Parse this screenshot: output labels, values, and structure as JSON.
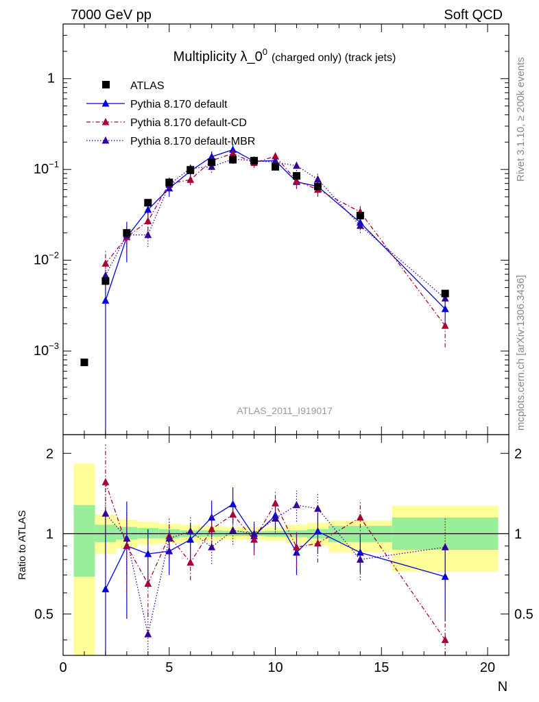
{
  "header": {
    "left": "7000 GeV pp",
    "right": "Soft QCD"
  },
  "side_labels": {
    "rivet": "Rivet 3.1.10, ≥ 200k events",
    "mcplots": "mcplots.cern.ch [arXiv:1306.3436]"
  },
  "chart_data": [
    {
      "type": "scatter",
      "panel": "main",
      "title_main": "Multiplicity λ_0",
      "title_sup": "0",
      "title_suffix": "(charged only) (track jets)",
      "analysis": "ATLAS_2011_I919017",
      "yscale": "log",
      "xlim": [
        0,
        21
      ],
      "ylim": [
        0.00012,
        4
      ],
      "ytick_labels": {
        "1": "1",
        "0.1": "10",
        "0.01": "10",
        "0.001": "10"
      },
      "ytick_exponents": {
        "0.1": "−1",
        "0.01": "−2",
        "0.001": "−3"
      },
      "legend_position": "top-left",
      "series": [
        {
          "name": "ATLAS",
          "color": "#000000",
          "marker": "square",
          "line": "none",
          "x": [
            1,
            2,
            3,
            4,
            5,
            6,
            7,
            8,
            9,
            10,
            11,
            12,
            14,
            18
          ],
          "y": [
            0.00075,
            0.0059,
            0.02,
            0.043,
            0.072,
            0.099,
            0.12,
            0.128,
            0.125,
            0.107,
            0.085,
            0.065,
            0.031,
            0.0043
          ]
        },
        {
          "name": "Pythia 8.170 default",
          "color": "#0000dd",
          "marker": "triangle",
          "line": "solid",
          "x": [
            2,
            3,
            4,
            5,
            6,
            7,
            8,
            9,
            10,
            11,
            12,
            14,
            18
          ],
          "y": [
            0.0036,
            0.018,
            0.036,
            0.062,
            0.096,
            0.138,
            0.165,
            0.123,
            0.125,
            0.073,
            0.065,
            0.026,
            0.0029
          ],
          "yerr": [
            0.0036,
            0.0085,
            0.007,
            0.012,
            0.015,
            0.02,
            0.025,
            0.015,
            0.015,
            0.012,
            0.01,
            0.004,
            0.0008
          ]
        },
        {
          "name": "Pythia 8.170 default-CD",
          "color": "#aa0033",
          "marker": "triangle",
          "line": "dashdot",
          "x": [
            2,
            3,
            4,
            5,
            6,
            7,
            8,
            9,
            10,
            11,
            12,
            14,
            18
          ],
          "y": [
            0.0092,
            0.018,
            0.027,
            0.07,
            0.077,
            0.125,
            0.15,
            0.118,
            0.14,
            0.075,
            0.06,
            0.034,
            0.0019
          ],
          "yerr": [
            0.004,
            0.006,
            0.006,
            0.012,
            0.01,
            0.015,
            0.018,
            0.014,
            0.016,
            0.012,
            0.01,
            0.006,
            0.0008
          ]
        },
        {
          "name": "Pythia 8.170 default-MBR",
          "color": "#330099",
          "marker": "triangle",
          "line": "dotted",
          "x": [
            2,
            3,
            4,
            5,
            6,
            7,
            8,
            9,
            10,
            11,
            12,
            14,
            18
          ],
          "y": [
            0.0068,
            0.019,
            0.019,
            0.068,
            0.103,
            0.107,
            0.13,
            0.125,
            0.12,
            0.11,
            0.078,
            0.024,
            0.0038
          ],
          "yerr": [
            0.0025,
            0.005,
            0.005,
            0.012,
            0.014,
            0.015,
            0.015,
            0.014,
            0.014,
            0.014,
            0.012,
            0.004,
            0.001
          ]
        }
      ]
    },
    {
      "type": "scatter",
      "panel": "ratio",
      "ylabel": "Ratio to ATLAS",
      "xlabel": "N",
      "xlim": [
        0,
        21
      ],
      "ylim": [
        0.35,
        2.35
      ],
      "xtick_labels": [
        "0",
        "5",
        "10",
        "15",
        "20"
      ],
      "ytick_labels": [
        "0.5",
        "1",
        "2"
      ],
      "bands": [
        {
          "x0": 0.5,
          "x1": 1.5,
          "green": [
            0.69,
            1.28
          ],
          "yellow": [
            0.33,
            1.83
          ]
        },
        {
          "x0": 1.5,
          "x1": 2.5,
          "green": [
            0.93,
            1.08
          ],
          "yellow": [
            0.84,
            1.18
          ]
        },
        {
          "x0": 2.5,
          "x1": 3.5,
          "green": [
            0.95,
            1.06
          ],
          "yellow": [
            0.88,
            1.13
          ]
        },
        {
          "x0": 3.5,
          "x1": 4.5,
          "green": [
            0.96,
            1.05
          ],
          "yellow": [
            0.91,
            1.11
          ]
        },
        {
          "x0": 4.5,
          "x1": 5.5,
          "green": [
            0.96,
            1.04
          ],
          "yellow": [
            0.92,
            1.09
          ]
        },
        {
          "x0": 5.5,
          "x1": 6.5,
          "green": [
            0.97,
            1.03
          ],
          "yellow": [
            0.93,
            1.08
          ]
        },
        {
          "x0": 6.5,
          "x1": 7.5,
          "green": [
            0.975,
            1.03
          ],
          "yellow": [
            0.94,
            1.07
          ]
        },
        {
          "x0": 7.5,
          "x1": 8.5,
          "green": [
            0.98,
            1.025
          ],
          "yellow": [
            0.95,
            1.06
          ]
        },
        {
          "x0": 8.5,
          "x1": 9.5,
          "green": [
            0.98,
            1.02
          ],
          "yellow": [
            0.95,
            1.06
          ]
        },
        {
          "x0": 9.5,
          "x1": 10.5,
          "green": [
            0.975,
            1.025
          ],
          "yellow": [
            0.94,
            1.06
          ]
        },
        {
          "x0": 10.5,
          "x1": 11.5,
          "green": [
            0.97,
            1.03
          ],
          "yellow": [
            0.92,
            1.08
          ]
        },
        {
          "x0": 11.5,
          "x1": 12.5,
          "green": [
            0.96,
            1.04
          ],
          "yellow": [
            0.9,
            1.1
          ]
        },
        {
          "x0": 12.5,
          "x1": 15.5,
          "green": [
            0.93,
            1.07
          ],
          "yellow": [
            0.85,
            1.12
          ]
        },
        {
          "x0": 15.5,
          "x1": 20.5,
          "green": [
            0.87,
            1.15
          ],
          "yellow": [
            0.72,
            1.27
          ]
        }
      ],
      "series": [
        {
          "name": "Pythia 8.170 default",
          "color": "#0000dd",
          "line": "solid",
          "x": [
            2,
            3,
            4,
            5,
            6,
            7,
            8,
            9,
            10,
            11,
            12,
            14,
            18
          ],
          "y": [
            0.62,
            0.9,
            0.84,
            0.86,
            0.95,
            1.15,
            1.29,
            0.98,
            1.17,
            0.85,
            1.02,
            0.85,
            0.69
          ],
          "yerr": [
            0.62,
            0.42,
            0.2,
            0.16,
            0.15,
            0.18,
            0.2,
            0.12,
            0.14,
            0.15,
            0.18,
            0.14,
            0.22
          ]
        },
        {
          "name": "Pythia 8.170 default-CD",
          "color": "#aa0033",
          "line": "dashdot",
          "x": [
            2,
            3,
            4,
            5,
            6,
            7,
            8,
            9,
            10,
            11,
            12,
            14,
            18
          ],
          "y": [
            1.56,
            0.9,
            0.65,
            0.98,
            0.78,
            1.04,
            1.18,
            0.95,
            1.3,
            0.89,
            0.92,
            1.15,
            0.4
          ],
          "yerr": [
            0.6,
            0.3,
            0.16,
            0.16,
            0.11,
            0.13,
            0.15,
            0.12,
            0.15,
            0.14,
            0.14,
            0.18,
            0.12
          ]
        },
        {
          "name": "Pythia 8.170 default-MBR",
          "color": "#330099",
          "line": "dotted",
          "x": [
            2,
            3,
            4,
            5,
            6,
            7,
            8,
            9,
            10,
            11,
            12,
            14,
            18
          ],
          "y": [
            1.19,
            0.96,
            0.42,
            0.96,
            1.02,
            0.89,
            1.03,
            1.0,
            1.14,
            1.28,
            1.24,
            0.8,
            0.89
          ],
          "yerr": [
            0.38,
            0.25,
            0.1,
            0.17,
            0.14,
            0.12,
            0.12,
            0.11,
            0.13,
            0.17,
            0.19,
            0.13,
            0.25
          ]
        }
      ]
    }
  ]
}
